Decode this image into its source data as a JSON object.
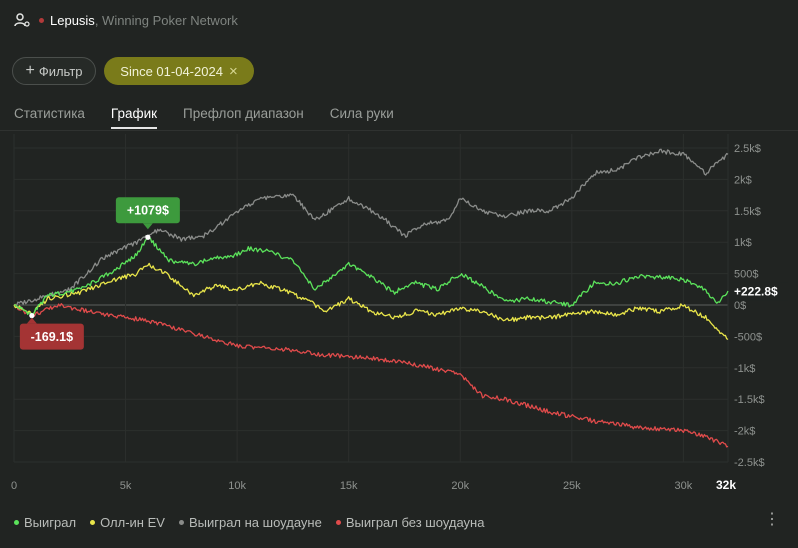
{
  "header": {
    "player": "Lepusis",
    "network": "Winning Poker Network"
  },
  "filters": {
    "add_label": "Фильтр",
    "date_chip": "Since 01-04-2024"
  },
  "tabs": [
    "Статистика",
    "График",
    "Префлоп диапазон",
    "Сила руки"
  ],
  "active_tab": 1,
  "legend": [
    {
      "label": "Выиграл",
      "color": "#5be35b"
    },
    {
      "label": "Олл-ин EV",
      "color": "#e9e54a"
    },
    {
      "label": "Выиграл на шоудауне",
      "color": "#8a8c8a"
    },
    {
      "label": "Выиграл без шоудауна",
      "color": "#e04b4b"
    }
  ],
  "chart_data": {
    "type": "line",
    "x_ticks": [
      "0",
      "5k",
      "10k",
      "15k",
      "20k",
      "25k",
      "30k"
    ],
    "x_end_label": "32k",
    "y_ticks": [
      "2.5k$",
      "2k$",
      "1.5k$",
      "1k$",
      "500$",
      "0$",
      "-500$",
      "-1k$",
      "-1.5k$",
      "-2k$",
      "-2.5k$"
    ],
    "xlim": [
      0,
      32000
    ],
    "ylim": [
      -2500,
      2500
    ],
    "series": [
      {
        "name": "Выиграл",
        "color": "#5be35b",
        "points": [
          [
            0,
            0
          ],
          [
            800,
            -150
          ],
          [
            1500,
            150
          ],
          [
            3000,
            250
          ],
          [
            4500,
            550
          ],
          [
            5500,
            800
          ],
          [
            6000,
            1079
          ],
          [
            7000,
            700
          ],
          [
            8000,
            650
          ],
          [
            9000,
            750
          ],
          [
            10000,
            800
          ],
          [
            10500,
            900
          ],
          [
            11500,
            850
          ],
          [
            12500,
            700
          ],
          [
            13500,
            250
          ],
          [
            15000,
            650
          ],
          [
            16000,
            450
          ],
          [
            17000,
            200
          ],
          [
            18000,
            350
          ],
          [
            19000,
            250
          ],
          [
            20000,
            500
          ],
          [
            21000,
            300
          ],
          [
            22000,
            50
          ],
          [
            23000,
            100
          ],
          [
            24000,
            50
          ],
          [
            25000,
            0
          ],
          [
            26000,
            350
          ],
          [
            27000,
            350
          ],
          [
            28000,
            450
          ],
          [
            29000,
            450
          ],
          [
            30000,
            400
          ],
          [
            31000,
            250
          ],
          [
            31500,
            0
          ],
          [
            32000,
            222.8
          ]
        ]
      },
      {
        "name": "Олл-ин EV",
        "color": "#e9e54a",
        "points": [
          [
            0,
            0
          ],
          [
            800,
            -150
          ],
          [
            1500,
            100
          ],
          [
            3000,
            200
          ],
          [
            4500,
            400
          ],
          [
            5500,
            500
          ],
          [
            6000,
            650
          ],
          [
            7000,
            450
          ],
          [
            8000,
            150
          ],
          [
            9000,
            300
          ],
          [
            10000,
            250
          ],
          [
            11000,
            350
          ],
          [
            12000,
            250
          ],
          [
            13000,
            100
          ],
          [
            14000,
            -100
          ],
          [
            15000,
            100
          ],
          [
            16000,
            -100
          ],
          [
            17000,
            -200
          ],
          [
            18000,
            -100
          ],
          [
            19000,
            -150
          ],
          [
            20000,
            -50
          ],
          [
            21000,
            -100
          ],
          [
            22000,
            -250
          ],
          [
            23000,
            -200
          ],
          [
            24000,
            -200
          ],
          [
            25000,
            -150
          ],
          [
            26000,
            -100
          ],
          [
            27000,
            -150
          ],
          [
            28000,
            -50
          ],
          [
            29000,
            -100
          ],
          [
            30000,
            0
          ],
          [
            31000,
            -200
          ],
          [
            32000,
            -550
          ]
        ]
      },
      {
        "name": "Выиграл на шоудауне",
        "color": "#8a8c8a",
        "points": [
          [
            0,
            0
          ],
          [
            1000,
            100
          ],
          [
            2500,
            250
          ],
          [
            4000,
            750
          ],
          [
            5500,
            1000
          ],
          [
            6500,
            1200
          ],
          [
            7500,
            1050
          ],
          [
            8500,
            1100
          ],
          [
            9500,
            1350
          ],
          [
            11000,
            1700
          ],
          [
            12500,
            1750
          ],
          [
            13500,
            1350
          ],
          [
            15000,
            1700
          ],
          [
            16500,
            1400
          ],
          [
            17500,
            1100
          ],
          [
            18500,
            1300
          ],
          [
            19500,
            1350
          ],
          [
            20000,
            1700
          ],
          [
            21000,
            1500
          ],
          [
            22000,
            1400
          ],
          [
            23000,
            1500
          ],
          [
            24000,
            1500
          ],
          [
            25000,
            1700
          ],
          [
            26000,
            2100
          ],
          [
            27000,
            2150
          ],
          [
            28000,
            2350
          ],
          [
            29000,
            2450
          ],
          [
            30000,
            2400
          ],
          [
            31000,
            2100
          ],
          [
            32000,
            2400
          ]
        ]
      },
      {
        "name": "Выиграл без шоудауна",
        "color": "#e04b4b",
        "points": [
          [
            0,
            0
          ],
          [
            800,
            -169.1
          ],
          [
            2000,
            0
          ],
          [
            4000,
            -150
          ],
          [
            6000,
            -250
          ],
          [
            8000,
            -450
          ],
          [
            10000,
            -650
          ],
          [
            12000,
            -700
          ],
          [
            14000,
            -800
          ],
          [
            16000,
            -850
          ],
          [
            17000,
            -900
          ],
          [
            18000,
            -950
          ],
          [
            20000,
            -1100
          ],
          [
            21000,
            -1450
          ],
          [
            22000,
            -1500
          ],
          [
            24000,
            -1700
          ],
          [
            26000,
            -1850
          ],
          [
            28000,
            -1950
          ],
          [
            30000,
            -2000
          ],
          [
            31000,
            -2100
          ],
          [
            32000,
            -2250
          ]
        ]
      }
    ],
    "annotations": [
      {
        "text": "+1079$",
        "x": 6000,
        "y": 1079,
        "color": "#3d9a3d"
      },
      {
        "text": "-169.1$",
        "x": 800,
        "y": -169.1,
        "color": "#a43434"
      }
    ],
    "end_label": "+222.8$"
  }
}
